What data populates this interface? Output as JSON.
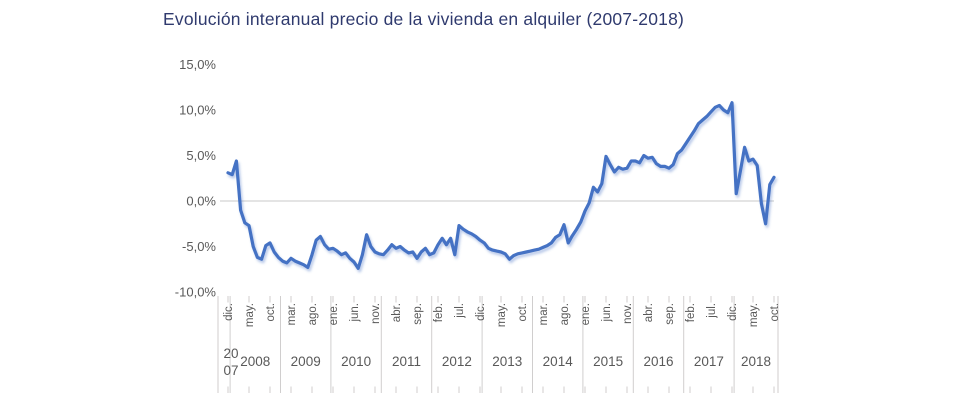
{
  "title": "Evolución interanual precio de la vivienda en alquiler (2007-2018)",
  "colors": {
    "line": "#4472C4",
    "title_text": "#2F3A6E",
    "axis_text": "#595959",
    "grid": "#C9C9C9",
    "separator": "#D0CECE"
  },
  "chart_data": {
    "type": "line",
    "title": "Evolución interanual precio de la vivienda en alquiler (2007-2018)",
    "legend": "none",
    "grid": "zero-line-only",
    "x_frequency": "monthly",
    "x_start": "dic. 2007",
    "x_end": "oct. 2018",
    "y_format": "percent with Spanish decimal comma",
    "ylim": [
      -10,
      15
    ],
    "y_tick_labels": [
      "15,0%",
      "10,0%",
      "5,0%",
      "0,0%",
      "-5,0%",
      "-10,0%"
    ],
    "y_tick_values": [
      15,
      10,
      5,
      0,
      -5,
      -10
    ],
    "x_tick_interval_months": 5,
    "x_month_tick_labels": [
      "dic.",
      "may.",
      "oct.",
      "mar.",
      "ago.",
      "ene.",
      "jun.",
      "nov.",
      "abr.",
      "sep.",
      "feb.",
      "jul.",
      "dic.",
      "may.",
      "oct.",
      "mar.",
      "ago.",
      "ene.",
      "jun.",
      "nov.",
      "abr.",
      "sep.",
      "feb.",
      "jul.",
      "dic.",
      "may.",
      "oct."
    ],
    "x_year_labels": [
      "2007",
      "2008",
      "2009",
      "2010",
      "2011",
      "2012",
      "2013",
      "2014",
      "2015",
      "2016",
      "2017",
      "2018"
    ],
    "x_year_first_wrapped": [
      "20",
      "07"
    ],
    "values_pct": [
      3.1,
      2.9,
      4.4,
      -1.0,
      -2.4,
      -2.7,
      -5.0,
      -6.2,
      -6.4,
      -4.9,
      -4.6,
      -5.6,
      -6.2,
      -6.6,
      -6.8,
      -6.3,
      -6.6,
      -6.8,
      -7.0,
      -7.3,
      -5.9,
      -4.3,
      -3.9,
      -4.8,
      -5.3,
      -5.2,
      -5.5,
      -5.9,
      -5.7,
      -6.3,
      -6.7,
      -7.4,
      -5.9,
      -3.7,
      -5.0,
      -5.6,
      -5.8,
      -5.9,
      -5.4,
      -4.8,
      -5.2,
      -5.0,
      -5.4,
      -5.7,
      -5.6,
      -6.3,
      -5.6,
      -5.2,
      -5.9,
      -5.7,
      -4.8,
      -4.1,
      -4.8,
      -4.1,
      -5.9,
      -2.7,
      -3.1,
      -3.4,
      -3.6,
      -3.9,
      -4.3,
      -4.6,
      -5.2,
      -5.4,
      -5.5,
      -5.6,
      -5.8,
      -6.4,
      -6.0,
      -5.8,
      -5.7,
      -5.6,
      -5.5,
      -5.4,
      -5.3,
      -5.1,
      -4.9,
      -4.6,
      -4.0,
      -3.7,
      -2.6,
      -4.6,
      -3.8,
      -3.1,
      -2.3,
      -1.1,
      -0.2,
      1.5,
      1.0,
      1.9,
      4.9,
      4.0,
      3.2,
      3.7,
      3.5,
      3.6,
      4.4,
      4.4,
      4.2,
      5.0,
      4.7,
      4.8,
      4.1,
      3.8,
      3.8,
      3.6,
      4.0,
      5.2,
      5.6,
      6.3,
      7.0,
      7.7,
      8.5,
      8.9,
      9.3,
      9.8,
      10.3,
      10.5,
      10.0,
      9.7,
      10.8,
      0.8,
      3.3,
      5.9,
      4.4,
      4.6,
      3.9,
      -0.3,
      -2.5,
      1.8,
      2.6
    ]
  }
}
